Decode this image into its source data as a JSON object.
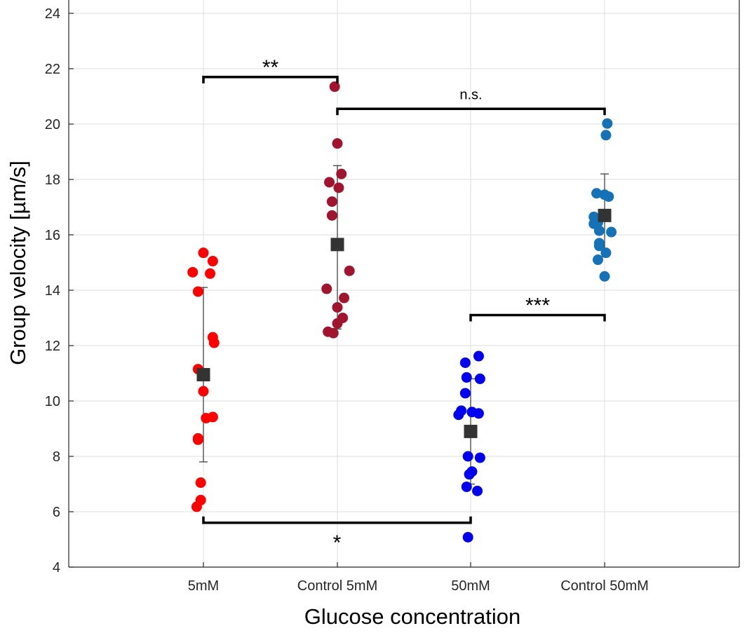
{
  "chart_data": {
    "type": "scatter",
    "title": "",
    "xlabel": "Glucose concentration",
    "ylabel": "Group velocity [µm/s]",
    "ylim": [
      4,
      24
    ],
    "yticks": [
      4,
      6,
      8,
      10,
      12,
      14,
      16,
      18,
      20,
      22,
      24
    ],
    "ytick_labels": [
      "4",
      "6",
      "8",
      "10",
      "12",
      "14",
      "16",
      "18",
      "20",
      "22",
      "24"
    ],
    "grid": true,
    "categories": [
      "5mM",
      "Control 5mM",
      "50mM",
      "Control 50mM"
    ],
    "series": [
      {
        "name": "5mM",
        "color": "#ff0000",
        "mean": 10.95,
        "sd_low": 7.8,
        "sd_high": 14.1,
        "points": [
          {
            "dx": 0.0,
            "y": 15.35
          },
          {
            "dx": 0.07,
            "y": 15.05
          },
          {
            "dx": -0.08,
            "y": 14.65
          },
          {
            "dx": 0.05,
            "y": 14.6
          },
          {
            "dx": -0.04,
            "y": 13.95
          },
          {
            "dx": 0.07,
            "y": 12.3
          },
          {
            "dx": 0.08,
            "y": 12.1
          },
          {
            "dx": -0.04,
            "y": 11.15
          },
          {
            "dx": 0.0,
            "y": 10.35
          },
          {
            "dx": 0.07,
            "y": 9.42
          },
          {
            "dx": 0.02,
            "y": 9.38
          },
          {
            "dx": -0.04,
            "y": 8.65
          },
          {
            "dx": -0.04,
            "y": 8.6
          },
          {
            "dx": -0.02,
            "y": 7.05
          },
          {
            "dx": -0.02,
            "y": 6.42
          },
          {
            "dx": -0.05,
            "y": 6.18
          }
        ]
      },
      {
        "name": "Control 5mM",
        "color": "#a0142e",
        "mean": 15.65,
        "sd_low": 12.6,
        "sd_high": 18.5,
        "points": [
          {
            "dx": -0.02,
            "y": 21.35
          },
          {
            "dx": 0.0,
            "y": 19.3
          },
          {
            "dx": 0.03,
            "y": 18.2
          },
          {
            "dx": -0.06,
            "y": 17.9
          },
          {
            "dx": 0.01,
            "y": 17.7
          },
          {
            "dx": -0.04,
            "y": 17.2
          },
          {
            "dx": -0.04,
            "y": 16.7
          },
          {
            "dx": 0.09,
            "y": 14.7
          },
          {
            "dx": -0.08,
            "y": 14.05
          },
          {
            "dx": 0.05,
            "y": 13.72
          },
          {
            "dx": 0.0,
            "y": 13.38
          },
          {
            "dx": 0.04,
            "y": 13.0
          },
          {
            "dx": 0.0,
            "y": 12.8
          },
          {
            "dx": -0.07,
            "y": 12.5
          },
          {
            "dx": -0.03,
            "y": 12.45
          }
        ]
      },
      {
        "name": "50mM",
        "color": "#0000ee",
        "mean": 8.9,
        "sd_low": 7.0,
        "sd_high": 10.8,
        "points": [
          {
            "dx": 0.06,
            "y": 11.62
          },
          {
            "dx": -0.04,
            "y": 11.38
          },
          {
            "dx": -0.03,
            "y": 10.85
          },
          {
            "dx": 0.07,
            "y": 10.8
          },
          {
            "dx": -0.04,
            "y": 10.28
          },
          {
            "dx": -0.07,
            "y": 9.65
          },
          {
            "dx": -0.09,
            "y": 9.5
          },
          {
            "dx": 0.01,
            "y": 9.6
          },
          {
            "dx": 0.06,
            "y": 9.55
          },
          {
            "dx": -0.02,
            "y": 8.0
          },
          {
            "dx": 0.07,
            "y": 7.95
          },
          {
            "dx": 0.01,
            "y": 7.45
          },
          {
            "dx": -0.01,
            "y": 7.35
          },
          {
            "dx": -0.03,
            "y": 6.9
          },
          {
            "dx": 0.05,
            "y": 6.75
          },
          {
            "dx": -0.02,
            "y": 5.08
          }
        ]
      },
      {
        "name": "Control 50mM",
        "color": "#1572b6",
        "mean": 16.7,
        "sd_low": 15.2,
        "sd_high": 18.2,
        "points": [
          {
            "dx": 0.02,
            "y": 20.02
          },
          {
            "dx": 0.01,
            "y": 19.6
          },
          {
            "dx": -0.06,
            "y": 17.5
          },
          {
            "dx": 0.0,
            "y": 17.45
          },
          {
            "dx": 0.03,
            "y": 17.38
          },
          {
            "dx": -0.08,
            "y": 16.65
          },
          {
            "dx": -0.05,
            "y": 16.45
          },
          {
            "dx": -0.08,
            "y": 16.4
          },
          {
            "dx": -0.04,
            "y": 16.15
          },
          {
            "dx": 0.05,
            "y": 16.1
          },
          {
            "dx": -0.04,
            "y": 15.7
          },
          {
            "dx": -0.04,
            "y": 15.6
          },
          {
            "dx": 0.01,
            "y": 15.35
          },
          {
            "dx": -0.05,
            "y": 15.1
          },
          {
            "dx": 0.0,
            "y": 14.5
          }
        ]
      }
    ],
    "significance": [
      {
        "from": "5mM",
        "to": "Control 5mM",
        "y": 21.7,
        "label": "**",
        "label_side": "above"
      },
      {
        "from": "Control 5mM",
        "to": "Control 50mM",
        "y": 20.55,
        "label": "n.s.",
        "label_side": "above"
      },
      {
        "from": "50mM",
        "to": "Control 50mM",
        "y": 13.1,
        "label": "***",
        "label_side": "above"
      },
      {
        "from": "5mM",
        "to": "50mM",
        "y": 5.6,
        "label": "*",
        "label_side": "below"
      }
    ]
  }
}
